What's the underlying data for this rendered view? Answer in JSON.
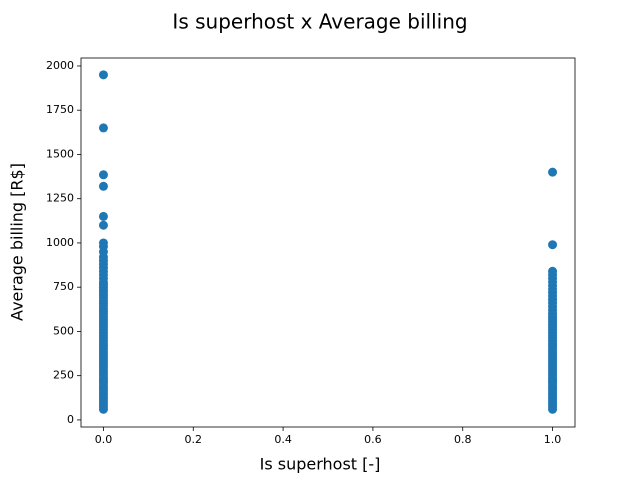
{
  "chart_data": {
    "type": "scatter",
    "title": "Is superhost x Average billing",
    "x_label": "Is superhost [-]",
    "y_label": "Average billing [R$]",
    "color": "#1f77b4",
    "x": [
      0,
      0,
      0,
      0,
      0,
      0,
      0,
      0,
      0,
      0,
      0,
      0,
      0,
      0,
      0,
      0,
      0,
      0,
      0,
      0,
      0,
      0,
      0,
      0,
      0,
      0,
      0,
      0,
      0,
      0,
      0,
      0,
      0,
      0,
      0,
      0,
      0,
      0,
      0,
      0,
      0,
      0,
      0,
      0,
      0,
      0,
      0,
      0,
      0,
      0,
      0,
      0,
      0,
      0,
      0,
      0,
      0,
      0,
      0,
      0,
      0,
      0,
      0,
      0,
      0,
      1,
      1,
      1,
      1,
      1,
      1,
      1,
      1,
      1,
      1,
      1,
      1,
      1,
      1,
      1,
      1,
      1,
      1,
      1,
      1,
      1,
      1,
      1,
      1,
      1,
      1,
      1,
      1,
      1,
      1,
      1,
      1,
      1,
      1,
      1,
      1,
      1,
      1,
      1,
      1,
      1,
      1,
      1,
      1,
      1,
      1,
      1,
      1,
      1,
      1,
      1
    ],
    "values": [
      60,
      75,
      90,
      105,
      120,
      135,
      150,
      165,
      180,
      195,
      210,
      225,
      240,
      255,
      270,
      285,
      300,
      315,
      330,
      345,
      360,
      375,
      390,
      405,
      420,
      435,
      450,
      465,
      480,
      495,
      510,
      525,
      540,
      555,
      570,
      585,
      600,
      615,
      630,
      645,
      660,
      675,
      690,
      705,
      720,
      735,
      750,
      765,
      780,
      800,
      820,
      840,
      860,
      880,
      900,
      920,
      950,
      980,
      1000,
      1100,
      1150,
      1320,
      1385,
      1650,
      1950,
      60,
      75,
      90,
      105,
      120,
      135,
      150,
      165,
      180,
      195,
      210,
      225,
      240,
      255,
      270,
      285,
      300,
      315,
      330,
      345,
      360,
      375,
      390,
      405,
      420,
      435,
      450,
      465,
      480,
      495,
      510,
      525,
      540,
      555,
      570,
      585,
      600,
      620,
      640,
      660,
      680,
      700,
      720,
      740,
      760,
      780,
      800,
      820,
      840,
      990,
      1400
    ],
    "xlim": [
      -0.05,
      1.05
    ],
    "ylim": [
      -40,
      2045
    ],
    "xticks": [
      {
        "value": 0,
        "label": "0.0"
      },
      0.2,
      0.4,
      0.6,
      0.8,
      {
        "value": 1,
        "label": "1.0"
      }
    ],
    "yticks": [
      0,
      250,
      500,
      750,
      1000,
      1250,
      1500,
      1750,
      2000
    ]
  }
}
